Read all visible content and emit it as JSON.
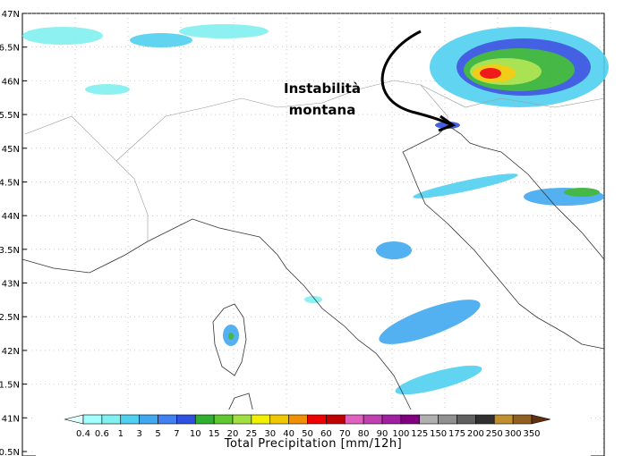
{
  "map": {
    "lat_labels": [
      "47N",
      "6.5N",
      "46N",
      "5.5N",
      "45N",
      "4.5N",
      "44N",
      "3.5N",
      "43N",
      "2.5N",
      "42N",
      "1.5N",
      "41N",
      "0.5N"
    ],
    "annotation": [
      "Instabilità",
      "montana"
    ]
  },
  "colorbar": {
    "labels": [
      "0.4",
      "0.6",
      "1",
      "3",
      "5",
      "7",
      "10",
      "15",
      "20",
      "25",
      "30",
      "40",
      "50",
      "60",
      "70",
      "80",
      "90",
      "100",
      "125",
      "150",
      "175",
      "200",
      "250",
      "300",
      "350"
    ],
    "title": "Total Precipitation [mm/12h]"
  }
}
